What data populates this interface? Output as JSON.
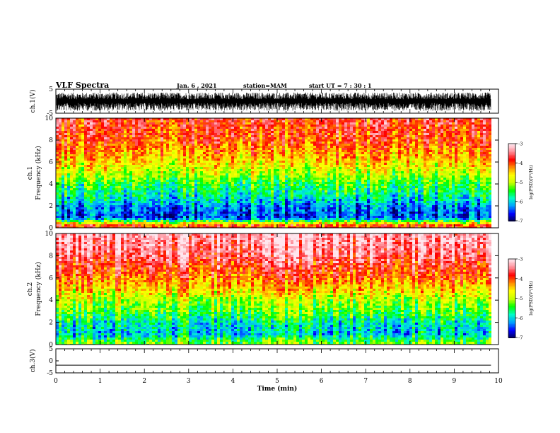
{
  "header": {
    "title": "VLF Spectra",
    "date": "Jan. 6 , 2021",
    "station": "station=MAM",
    "start": "start  UT =   7 : 30 : 1"
  },
  "chart_data": [
    {
      "type": "line",
      "panel": "ch1-waveform",
      "ylabel": "ch.1(V)",
      "ylim": [
        -5,
        5
      ],
      "yticks": [
        5,
        -5
      ],
      "description_signal": "dense noise waveform"
    },
    {
      "type": "heatmap",
      "panel": "ch1-spectrogram",
      "ylabel": "ch.1 Frequency (kHz)",
      "ylim": [
        0,
        10
      ],
      "yticks": [
        0,
        2,
        4,
        6,
        8,
        10
      ],
      "xlim": [
        0,
        10
      ],
      "data_xmax": 9.83,
      "colorbar": {
        "label": "log(PSD)(V²/Hz)",
        "range": [
          -7,
          -3
        ],
        "ticks": [
          -3,
          -4,
          -5,
          -6,
          -7
        ]
      },
      "power_profile_by_frequency": [
        {
          "f": 0.3,
          "log_psd": -4.0
        },
        {
          "f": 1.0,
          "log_psd": -6.5
        },
        {
          "f": 2.0,
          "log_psd": -6.3
        },
        {
          "f": 3.0,
          "log_psd": -5.8
        },
        {
          "f": 4.0,
          "log_psd": -5.5
        },
        {
          "f": 5.0,
          "log_psd": -5.0
        },
        {
          "f": 6.0,
          "log_psd": -4.6
        },
        {
          "f": 7.0,
          "log_psd": -4.3
        },
        {
          "f": 8.0,
          "log_psd": -4.0
        },
        {
          "f": 9.0,
          "log_psd": -3.9
        },
        {
          "f": 10.0,
          "log_psd": -3.8
        }
      ]
    },
    {
      "type": "heatmap",
      "panel": "ch2-spectrogram",
      "ylabel": "ch.2 Frequency (kHz)",
      "ylim": [
        0,
        10
      ],
      "yticks": [
        0,
        2,
        4,
        6,
        8,
        10
      ],
      "xlim": [
        0,
        10
      ],
      "data_xmax": 9.83,
      "colorbar": {
        "label": "log(PSD)(V²/Hz)",
        "range": [
          -7,
          -3
        ],
        "ticks": [
          -3,
          -4,
          -5,
          -6,
          -7
        ]
      },
      "power_profile_by_frequency": [
        {
          "f": 0.3,
          "log_psd": -5.2
        },
        {
          "f": 1.0,
          "log_psd": -6.0
        },
        {
          "f": 2.0,
          "log_psd": -5.8
        },
        {
          "f": 3.0,
          "log_psd": -5.3
        },
        {
          "f": 4.0,
          "log_psd": -5.0
        },
        {
          "f": 5.0,
          "log_psd": -4.5
        },
        {
          "f": 6.0,
          "log_psd": -4.1
        },
        {
          "f": 7.0,
          "log_psd": -3.8
        },
        {
          "f": 8.0,
          "log_psd": -3.5
        },
        {
          "f": 9.0,
          "log_psd": -3.3
        },
        {
          "f": 10.0,
          "log_psd": -3.2
        }
      ]
    },
    {
      "type": "line",
      "panel": "ch3-waveform",
      "ylabel": "ch.3(V)",
      "ylim": [
        -5,
        5
      ],
      "yticks": [
        5,
        0,
        -5
      ],
      "series": [
        {
          "x": [
            0,
            9.83
          ],
          "y": [
            -1.8,
            -1.8
          ]
        }
      ]
    }
  ],
  "xaxis": {
    "label": "Time (min)",
    "range": [
      0,
      10
    ],
    "ticks": [
      0,
      1,
      2,
      3,
      4,
      5,
      6,
      7,
      8,
      9,
      10
    ]
  },
  "colors": {
    "colormap": [
      "#00005a",
      "#0000ff",
      "#00a0ff",
      "#00ffc8",
      "#00ff00",
      "#c8ff00",
      "#ffff00",
      "#ff8c00",
      "#ff0000",
      "#ff8c96",
      "#ffe6ee"
    ]
  }
}
